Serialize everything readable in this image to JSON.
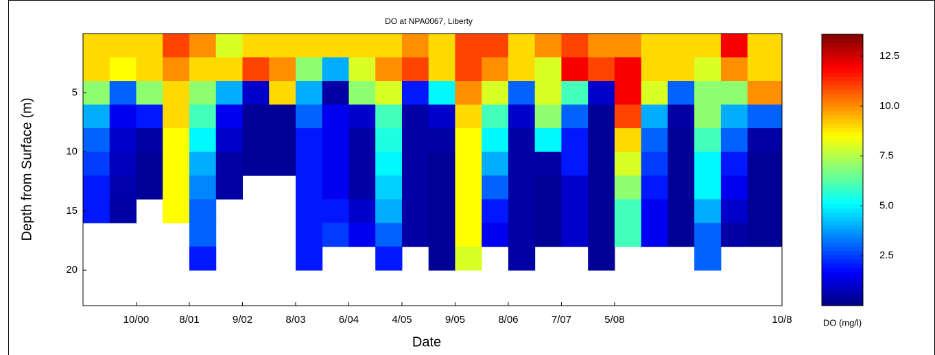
{
  "chart_data": {
    "type": "contour",
    "title": "DO at NPA0067, Liberty",
    "x_label": "Date",
    "y_label": "Depth from Surface (m)",
    "colorbar_label": "DO (mg/l)",
    "xlim": [
      0,
      13.15
    ],
    "xticks": [
      {
        "value": 1,
        "label": "10/00"
      },
      {
        "value": 2,
        "label": "8/01"
      },
      {
        "value": 3,
        "label": "9/02"
      },
      {
        "value": 4,
        "label": "8/03"
      },
      {
        "value": 5,
        "label": "6/04"
      },
      {
        "value": 6,
        "label": "4/05"
      },
      {
        "value": 7,
        "label": "9/05"
      },
      {
        "value": 8,
        "label": "8/06"
      },
      {
        "value": 9,
        "label": "7/07"
      },
      {
        "value": 10,
        "label": "5/08"
      },
      {
        "value": 13.15,
        "label": "10/8"
      }
    ],
    "ylim": [
      0,
      23
    ],
    "y_reversed": true,
    "yticks": [
      5,
      10,
      15,
      20
    ],
    "clim": [
      0,
      13.6
    ],
    "cticks": [
      2.5,
      {
        "value": 5,
        "label": "5.0"
      },
      7.5,
      {
        "value": 10,
        "label": "10.0"
      },
      12.5
    ],
    "colormap": "jet",
    "x": [
      0.25,
      0.75,
      1.25,
      1.75,
      2.25,
      2.75,
      3.25,
      3.75,
      4.25,
      4.75,
      5.25,
      5.75,
      6.25,
      6.75,
      7.25,
      7.75,
      8.25,
      8.75,
      9.25,
      9.75,
      10.25,
      10.75,
      11.25,
      11.75,
      12.25,
      12.75
    ],
    "depths": [
      1,
      3,
      5,
      7,
      9,
      11,
      13,
      15,
      17,
      19,
      21
    ],
    "values": [
      [
        9,
        9,
        7,
        4,
        3,
        2.5,
        2,
        2,
        null,
        null,
        null
      ],
      [
        9,
        8.5,
        3,
        1.5,
        1,
        0.8,
        0.6,
        0.5,
        null,
        null,
        null
      ],
      [
        9,
        9,
        7,
        2,
        0.5,
        0.3,
        0.3,
        null,
        null,
        null,
        null
      ],
      [
        11,
        10,
        9,
        9,
        8.5,
        8.5,
        8.5,
        8.5,
        null,
        null,
        null
      ],
      [
        10,
        9,
        7,
        6,
        5,
        4,
        3.5,
        3,
        3,
        2,
        null
      ],
      [
        8,
        9,
        4,
        1.5,
        1,
        0.5,
        0.5,
        null,
        null,
        null,
        null
      ],
      [
        9,
        11,
        1,
        0.3,
        0.3,
        0.3,
        null,
        null,
        null,
        null,
        null
      ],
      [
        9,
        10,
        9,
        0.3,
        0.3,
        0.3,
        null,
        null,
        null,
        null,
        null
      ],
      [
        9,
        7,
        4,
        3,
        2,
        2,
        2,
        2,
        2,
        2,
        null
      ],
      [
        9,
        4,
        0.5,
        1.5,
        1.5,
        1.5,
        1.5,
        2,
        2.5,
        null,
        null
      ],
      [
        9,
        8,
        7,
        1,
        0.5,
        0.5,
        0.5,
        1,
        1.5,
        null,
        null
      ],
      [
        9,
        10,
        8,
        6,
        5.5,
        5,
        4.5,
        4,
        3,
        2,
        null
      ],
      [
        10,
        11,
        2,
        0.5,
        0.5,
        0.5,
        0.5,
        0.5,
        0.5,
        null,
        null
      ],
      [
        9,
        9,
        5,
        1,
        0.5,
        0.3,
        0.3,
        0.3,
        0.3,
        0.3,
        null
      ],
      [
        11,
        11,
        10,
        9,
        8.5,
        8.5,
        8.5,
        8.5,
        8.5,
        8,
        null
      ],
      [
        11,
        10,
        8,
        6,
        5,
        4,
        3,
        2,
        1.5,
        null,
        null
      ],
      [
        9,
        9,
        3,
        1,
        0.5,
        0.5,
        0.5,
        0.5,
        0.5,
        0.5,
        null
      ],
      [
        10,
        8,
        8,
        7,
        5,
        0.5,
        0.3,
        0.3,
        0.3,
        null,
        null
      ],
      [
        11,
        12,
        6,
        3,
        2,
        2,
        1,
        1,
        1,
        null,
        null
      ],
      [
        10,
        11,
        1,
        0.3,
        0.3,
        0.3,
        0.3,
        0.3,
        0.3,
        0.3,
        null
      ],
      [
        10,
        12,
        12,
        11,
        9,
        8,
        7,
        6,
        6,
        null,
        null
      ],
      [
        9,
        9,
        8,
        4,
        3,
        2.5,
        2,
        1.5,
        1.5,
        null,
        null
      ],
      [
        9,
        9,
        3,
        0.5,
        0.3,
        0.3,
        0.3,
        0.3,
        0.3,
        null,
        null
      ],
      [
        9,
        8,
        7,
        7,
        6,
        5,
        5,
        4,
        3,
        3,
        null
      ],
      [
        12,
        10,
        7,
        4,
        3,
        2,
        1.5,
        1,
        0.5,
        null,
        null
      ],
      [
        9,
        9,
        10,
        3,
        0.5,
        0.3,
        0.3,
        0.3,
        0.3,
        null,
        null
      ]
    ]
  }
}
